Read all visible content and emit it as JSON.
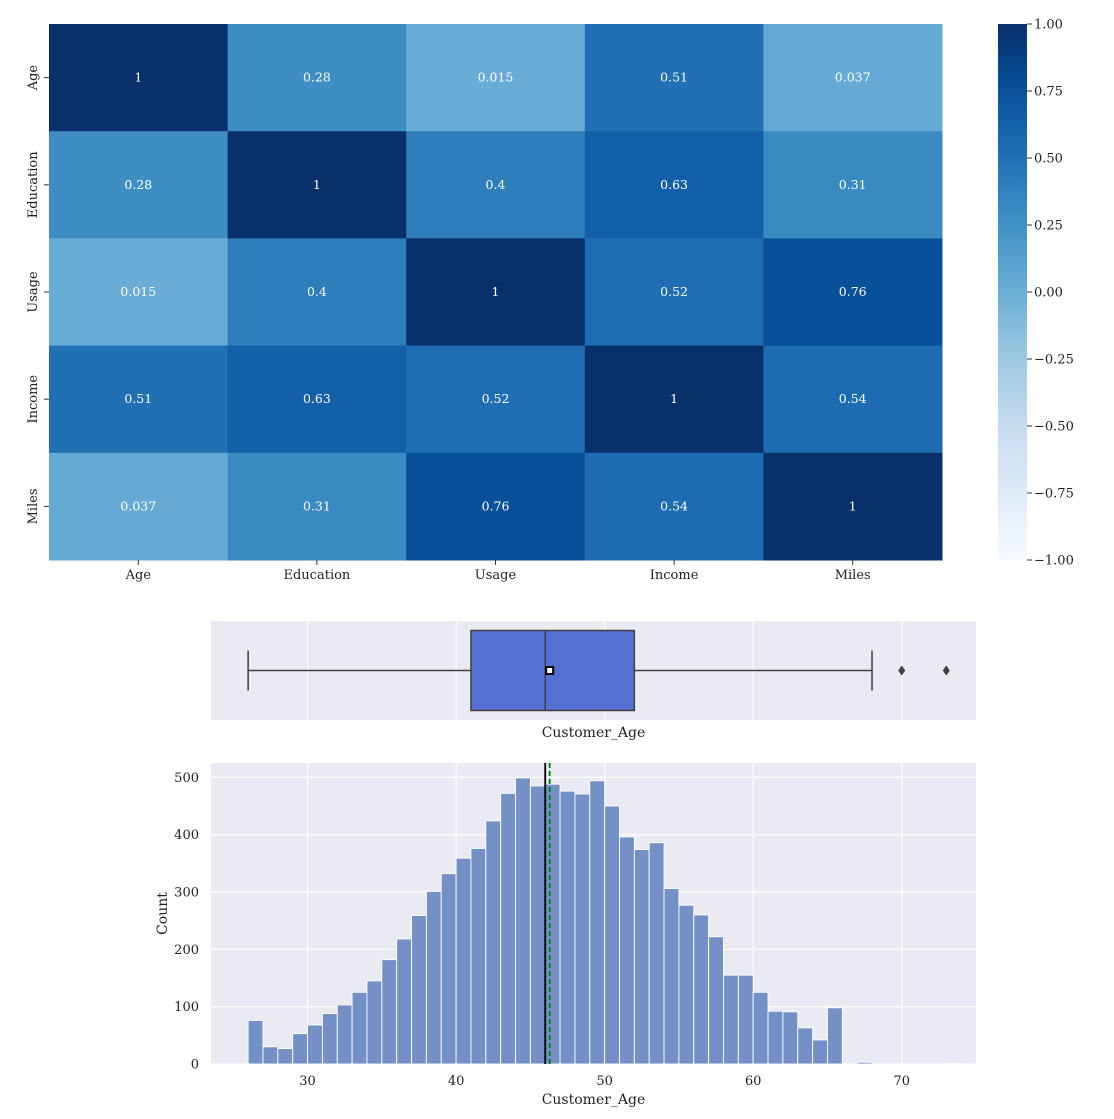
{
  "chart_data": [
    {
      "type": "heatmap",
      "labels": [
        "Age",
        "Education",
        "Usage",
        "Income",
        "Miles"
      ],
      "values": [
        [
          1,
          0.28,
          0.015,
          0.51,
          0.037
        ],
        [
          0.28,
          1,
          0.4,
          0.63,
          0.31
        ],
        [
          0.015,
          0.4,
          1,
          0.52,
          0.76
        ],
        [
          0.51,
          0.63,
          0.52,
          1,
          0.54
        ],
        [
          0.037,
          0.31,
          0.76,
          0.54,
          1
        ]
      ],
      "annotations": [
        [
          "1",
          "0.28",
          "0.015",
          "0.51",
          "0.037"
        ],
        [
          "0.28",
          "1",
          "0.4",
          "0.63",
          "0.31"
        ],
        [
          "0.015",
          "0.4",
          "1",
          "0.52",
          "0.76"
        ],
        [
          "0.51",
          "0.63",
          "0.52",
          "1",
          "0.54"
        ],
        [
          "0.037",
          "0.31",
          "0.76",
          "0.54",
          "1"
        ]
      ],
      "colormap": "Blues",
      "vmin": -1,
      "vmax": 1,
      "colorbar_ticks": [
        "1.00",
        "0.75",
        "0.50",
        "0.25",
        "0.00",
        "−0.25",
        "−0.50",
        "−0.75",
        "−1.00"
      ],
      "colorbar_tick_values": [
        1,
        0.75,
        0.5,
        0.25,
        0,
        -0.25,
        -0.5,
        -0.75,
        -1
      ]
    },
    {
      "type": "box",
      "xlabel": "Customer_Age",
      "xlim": [
        23.5,
        75
      ],
      "whisker_low": 26,
      "q1": 41,
      "median": 46,
      "mean": 46.3,
      "q3": 52,
      "whisker_high": 68,
      "outliers": [
        70,
        73
      ],
      "box_color": "#5470d0",
      "grid": true
    },
    {
      "type": "histogram",
      "xlabel": "Customer_Age",
      "ylabel": "Count",
      "xlim": [
        23.5,
        75
      ],
      "ylim": [
        0,
        525
      ],
      "xticks": [
        30,
        40,
        50,
        60,
        70
      ],
      "xtick_labels": [
        "30",
        "40",
        "50",
        "60",
        "70"
      ],
      "yticks": [
        0,
        100,
        200,
        300,
        400,
        500
      ],
      "ytick_labels": [
        "0",
        "100",
        "200",
        "300",
        "400",
        "500"
      ],
      "bin_start": 26,
      "bin_width": 1,
      "counts": [
        76,
        30,
        27,
        53,
        68,
        88,
        103,
        125,
        145,
        182,
        218,
        259,
        301,
        332,
        359,
        376,
        424,
        472,
        499,
        485,
        488,
        476,
        471,
        494,
        450,
        396,
        374,
        386,
        306,
        277,
        260,
        222,
        155,
        155,
        125,
        92,
        91,
        63,
        42,
        98,
        0,
        3,
        0,
        0,
        0,
        0,
        0,
        1
      ],
      "median_line": 46,
      "mean_line": 46.3,
      "bar_color": "#7490c6",
      "grid": true
    }
  ]
}
